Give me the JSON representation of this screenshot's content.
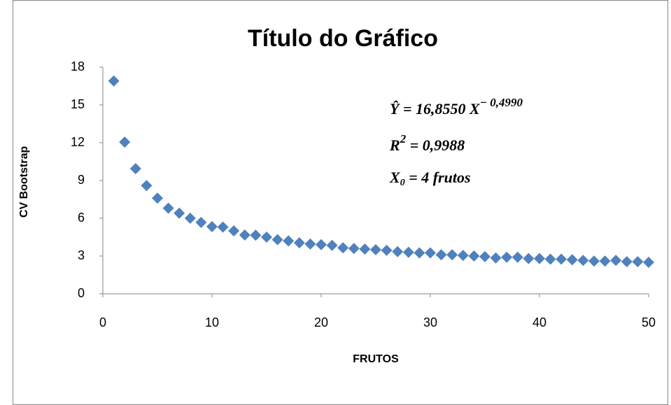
{
  "chart_data": {
    "type": "scatter",
    "title": "Título do Gráfico",
    "xlabel": "FRUTOS",
    "ylabel": "CV Bootstrap",
    "x": [
      1,
      2,
      3,
      4,
      5,
      6,
      7,
      8,
      9,
      10,
      11,
      12,
      13,
      14,
      15,
      16,
      17,
      18,
      19,
      20,
      21,
      22,
      23,
      24,
      25,
      26,
      27,
      28,
      29,
      30,
      31,
      32,
      33,
      34,
      35,
      36,
      37,
      38,
      39,
      40,
      41,
      42,
      43,
      44,
      45,
      46,
      47,
      48,
      49,
      50
    ],
    "values": [
      16.9,
      12.05,
      9.94,
      8.6,
      7.6,
      6.8,
      6.4,
      6.0,
      5.67,
      5.33,
      5.3,
      5.0,
      4.67,
      4.65,
      4.5,
      4.3,
      4.2,
      4.05,
      3.95,
      3.9,
      3.85,
      3.65,
      3.6,
      3.55,
      3.5,
      3.45,
      3.35,
      3.3,
      3.25,
      3.25,
      3.1,
      3.1,
      3.05,
      3.0,
      2.95,
      2.85,
      2.9,
      2.9,
      2.8,
      2.8,
      2.75,
      2.75,
      2.7,
      2.65,
      2.6,
      2.6,
      2.65,
      2.55,
      2.55,
      2.5
    ],
    "color": "#4f81bd",
    "xlim": [
      0,
      50
    ],
    "xticks": [
      0,
      10,
      20,
      30,
      40,
      50
    ],
    "ylim": [
      0,
      18
    ],
    "yticks": [
      0,
      3,
      6,
      9,
      12,
      15,
      18
    ],
    "annotations": [
      {
        "base": "Ŷ = 16,8550 X",
        "sup": "− 0,4990"
      },
      {
        "base": "R",
        "sup": "2",
        "rest": " = 0,9988"
      },
      {
        "base": "X",
        "sub": "0",
        "rest": " = 4 frutos"
      }
    ]
  }
}
